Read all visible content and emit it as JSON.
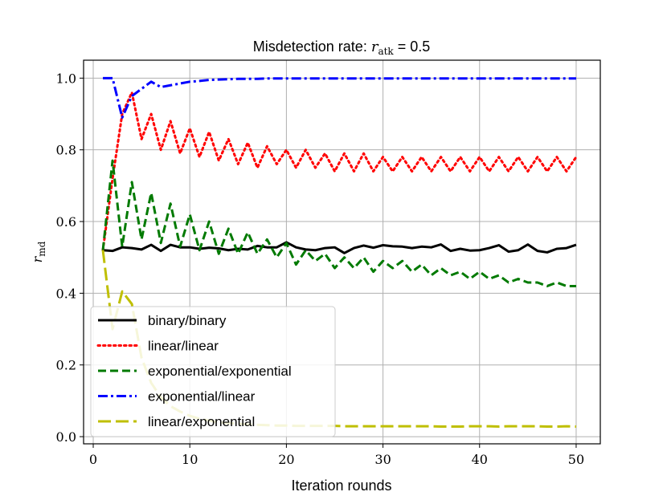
{
  "chart_data": {
    "type": "line",
    "title_prefix": "Misdetection rate: ",
    "title_var": "r",
    "title_sub": "atk",
    "title_suffix": " = 0.5",
    "xlabel": "Iteration rounds",
    "ylabel_var": "r",
    "ylabel_sub": "md",
    "xlim": [
      -1,
      52.5
    ],
    "ylim": [
      -0.02,
      1.05
    ],
    "xticks": [
      0,
      10,
      20,
      30,
      40,
      50
    ],
    "xtick_labels": [
      "0",
      "10",
      "20",
      "30",
      "40",
      "50"
    ],
    "yticks": [
      0.0,
      0.2,
      0.4,
      0.6,
      0.8,
      1.0
    ],
    "ytick_labels": [
      "0.0",
      "0.2",
      "0.4",
      "0.6",
      "0.8",
      "1.0"
    ],
    "grid": true,
    "legend_position": "lower-left",
    "x": [
      1,
      2,
      3,
      4,
      5,
      6,
      7,
      8,
      9,
      10,
      11,
      12,
      13,
      14,
      15,
      16,
      17,
      18,
      19,
      20,
      21,
      22,
      23,
      24,
      25,
      26,
      27,
      28,
      29,
      30,
      31,
      32,
      33,
      34,
      35,
      36,
      37,
      38,
      39,
      40,
      41,
      42,
      43,
      44,
      45,
      46,
      47,
      48,
      49,
      50
    ],
    "series": [
      {
        "name": "binary/binary",
        "color": "#000000",
        "style": "solid",
        "values": [
          0.52,
          0.518,
          0.528,
          0.526,
          0.522,
          0.535,
          0.518,
          0.535,
          0.528,
          0.528,
          0.524,
          0.527,
          0.525,
          0.52,
          0.524,
          0.522,
          0.532,
          0.528,
          0.528,
          0.542,
          0.528,
          0.522,
          0.52,
          0.526,
          0.528,
          0.512,
          0.526,
          0.533,
          0.527,
          0.534,
          0.531,
          0.53,
          0.526,
          0.53,
          0.528,
          0.536,
          0.518,
          0.524,
          0.519,
          0.52,
          0.526,
          0.534,
          0.516,
          0.52,
          0.536,
          0.518,
          0.514,
          0.524,
          0.526,
          0.535
        ]
      },
      {
        "name": "linear/linear",
        "color": "#ff0000",
        "style": "dotted",
        "values": [
          0.52,
          0.72,
          0.9,
          0.96,
          0.83,
          0.9,
          0.8,
          0.88,
          0.79,
          0.86,
          0.78,
          0.85,
          0.77,
          0.83,
          0.76,
          0.82,
          0.75,
          0.81,
          0.76,
          0.8,
          0.75,
          0.8,
          0.75,
          0.79,
          0.74,
          0.79,
          0.74,
          0.79,
          0.74,
          0.78,
          0.74,
          0.78,
          0.74,
          0.78,
          0.74,
          0.78,
          0.74,
          0.78,
          0.74,
          0.78,
          0.74,
          0.78,
          0.74,
          0.78,
          0.74,
          0.78,
          0.74,
          0.78,
          0.74,
          0.78
        ]
      },
      {
        "name": "exponential/exponential",
        "color": "#007a00",
        "style": "dashed",
        "values": [
          0.52,
          0.77,
          0.53,
          0.71,
          0.55,
          0.68,
          0.54,
          0.65,
          0.53,
          0.62,
          0.52,
          0.6,
          0.51,
          0.58,
          0.51,
          0.57,
          0.51,
          0.55,
          0.5,
          0.54,
          0.48,
          0.52,
          0.49,
          0.51,
          0.47,
          0.5,
          0.47,
          0.5,
          0.46,
          0.49,
          0.47,
          0.49,
          0.46,
          0.48,
          0.45,
          0.47,
          0.45,
          0.46,
          0.44,
          0.46,
          0.44,
          0.45,
          0.43,
          0.44,
          0.43,
          0.43,
          0.42,
          0.43,
          0.42,
          0.42
        ]
      },
      {
        "name": "exponential/linear",
        "color": "#0000ff",
        "style": "dashdot",
        "values": [
          1.0,
          1.0,
          0.89,
          0.95,
          0.97,
          0.99,
          0.975,
          0.98,
          0.985,
          0.99,
          0.992,
          0.995,
          0.996,
          0.997,
          0.998,
          0.998,
          0.998,
          0.999,
          0.999,
          0.999,
          0.999,
          0.999,
          0.999,
          0.999,
          0.999,
          0.999,
          0.999,
          0.999,
          0.999,
          0.999,
          0.999,
          0.999,
          0.999,
          0.999,
          0.999,
          0.999,
          0.999,
          0.999,
          0.999,
          0.999,
          0.999,
          0.999,
          0.999,
          0.999,
          0.999,
          0.999,
          0.999,
          0.999,
          0.999,
          0.999
        ]
      },
      {
        "name": "linear/exponential",
        "color": "#bfbf00",
        "style": "longdash",
        "values": [
          0.52,
          0.3,
          0.405,
          0.37,
          0.22,
          0.15,
          0.11,
          0.085,
          0.07,
          0.058,
          0.05,
          0.045,
          0.04,
          0.038,
          0.036,
          0.034,
          0.033,
          0.032,
          0.031,
          0.031,
          0.03,
          0.03,
          0.03,
          0.03,
          0.03,
          0.029,
          0.029,
          0.029,
          0.029,
          0.029,
          0.029,
          0.029,
          0.029,
          0.029,
          0.029,
          0.028,
          0.028,
          0.028,
          0.029,
          0.029,
          0.029,
          0.028,
          0.029,
          0.029,
          0.029,
          0.029,
          0.028,
          0.028,
          0.029,
          0.028
        ]
      }
    ]
  }
}
